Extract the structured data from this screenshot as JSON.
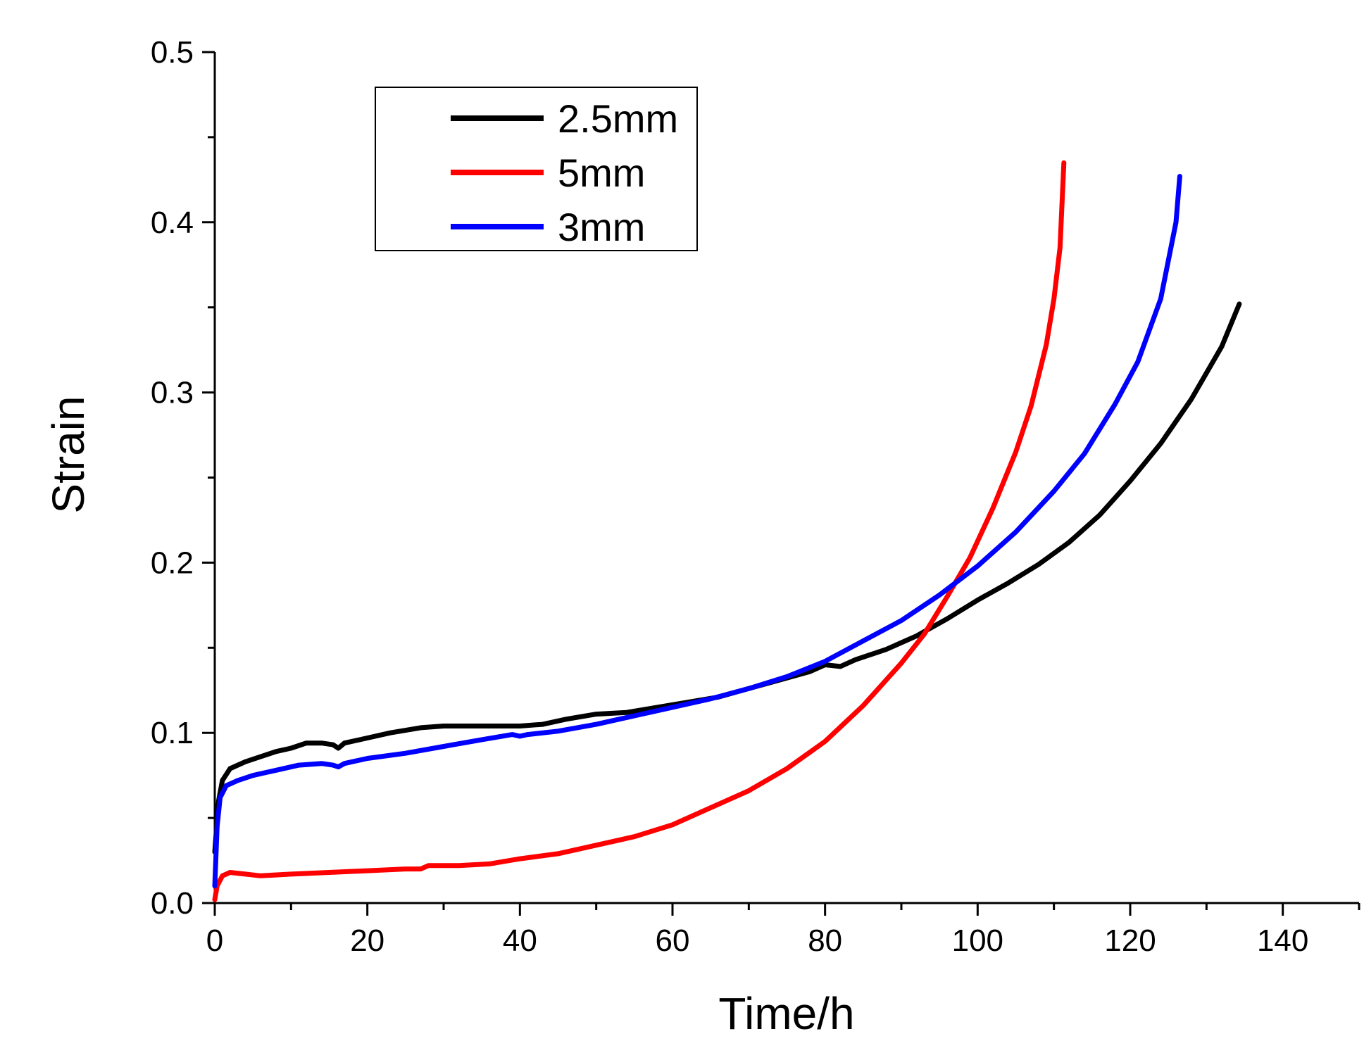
{
  "chart_data": {
    "type": "line",
    "title": "",
    "xlabel": "Time/h",
    "ylabel": "Strain",
    "xlim": [
      0,
      150
    ],
    "ylim": [
      0,
      0.5
    ],
    "x_ticks": [
      0,
      20,
      40,
      60,
      80,
      100,
      120,
      140
    ],
    "x_tick_labels": [
      "0",
      "20",
      "40",
      "60",
      "80",
      "100",
      "120",
      "140"
    ],
    "y_ticks": [
      0,
      0.1,
      0.2,
      0.3,
      0.4,
      0.5
    ],
    "y_tick_labels": [
      "0.0",
      "0.1",
      "0.2",
      "0.3",
      "0.4",
      "0.5"
    ],
    "grid": false,
    "legend_position": "top-left",
    "series": [
      {
        "name": "2.5mm",
        "color": "#000000",
        "points": [
          [
            0,
            0.03
          ],
          [
            0.5,
            0.06
          ],
          [
            1,
            0.072
          ],
          [
            2,
            0.079
          ],
          [
            4,
            0.083
          ],
          [
            6,
            0.086
          ],
          [
            8,
            0.089
          ],
          [
            10,
            0.091
          ],
          [
            12,
            0.094
          ],
          [
            14,
            0.094
          ],
          [
            15.5,
            0.093
          ],
          [
            16.2,
            0.091
          ],
          [
            17,
            0.094
          ],
          [
            20,
            0.097
          ],
          [
            23,
            0.1
          ],
          [
            27,
            0.103
          ],
          [
            30,
            0.104
          ],
          [
            35,
            0.104
          ],
          [
            40,
            0.104
          ],
          [
            43,
            0.105
          ],
          [
            46,
            0.108
          ],
          [
            50,
            0.111
          ],
          [
            54,
            0.112
          ],
          [
            58,
            0.115
          ],
          [
            62,
            0.118
          ],
          [
            66,
            0.121
          ],
          [
            70,
            0.126
          ],
          [
            74,
            0.131
          ],
          [
            78,
            0.136
          ],
          [
            80,
            0.14
          ],
          [
            82,
            0.139
          ],
          [
            84,
            0.143
          ],
          [
            88,
            0.149
          ],
          [
            92,
            0.157
          ],
          [
            96,
            0.167
          ],
          [
            100,
            0.178
          ],
          [
            104,
            0.188
          ],
          [
            108,
            0.199
          ],
          [
            112,
            0.212
          ],
          [
            116,
            0.228
          ],
          [
            120,
            0.248
          ],
          [
            124,
            0.27
          ],
          [
            128,
            0.296
          ],
          [
            132,
            0.327
          ],
          [
            134.3,
            0.352
          ]
        ]
      },
      {
        "name": "5mm",
        "color": "#ff0000",
        "points": [
          [
            0,
            0.002
          ],
          [
            0.3,
            0.01
          ],
          [
            1,
            0.016
          ],
          [
            2,
            0.018
          ],
          [
            4,
            0.017
          ],
          [
            6,
            0.016
          ],
          [
            10,
            0.017
          ],
          [
            15,
            0.018
          ],
          [
            20,
            0.019
          ],
          [
            25,
            0.02
          ],
          [
            27,
            0.02
          ],
          [
            28,
            0.022
          ],
          [
            32,
            0.022
          ],
          [
            36,
            0.023
          ],
          [
            40,
            0.026
          ],
          [
            45,
            0.029
          ],
          [
            50,
            0.034
          ],
          [
            55,
            0.039
          ],
          [
            60,
            0.046
          ],
          [
            65,
            0.056
          ],
          [
            70,
            0.066
          ],
          [
            75,
            0.079
          ],
          [
            80,
            0.095
          ],
          [
            85,
            0.116
          ],
          [
            90,
            0.141
          ],
          [
            93,
            0.158
          ],
          [
            96,
            0.18
          ],
          [
            99,
            0.203
          ],
          [
            102,
            0.232
          ],
          [
            105,
            0.265
          ],
          [
            107,
            0.292
          ],
          [
            109,
            0.328
          ],
          [
            110,
            0.355
          ],
          [
            110.8,
            0.385
          ],
          [
            111.3,
            0.435
          ]
        ]
      },
      {
        "name": "3mm",
        "color": "#0000ff",
        "points": [
          [
            0,
            0.01
          ],
          [
            0.3,
            0.045
          ],
          [
            0.7,
            0.062
          ],
          [
            1.5,
            0.069
          ],
          [
            3,
            0.072
          ],
          [
            5,
            0.075
          ],
          [
            8,
            0.078
          ],
          [
            11,
            0.081
          ],
          [
            14,
            0.082
          ],
          [
            15.5,
            0.081
          ],
          [
            16.2,
            0.08
          ],
          [
            17,
            0.082
          ],
          [
            20,
            0.085
          ],
          [
            25,
            0.088
          ],
          [
            30,
            0.092
          ],
          [
            35,
            0.096
          ],
          [
            39,
            0.099
          ],
          [
            40,
            0.098
          ],
          [
            41,
            0.099
          ],
          [
            45,
            0.101
          ],
          [
            50,
            0.105
          ],
          [
            55,
            0.11
          ],
          [
            60,
            0.115
          ],
          [
            65,
            0.12
          ],
          [
            70,
            0.126
          ],
          [
            75,
            0.133
          ],
          [
            80,
            0.142
          ],
          [
            85,
            0.154
          ],
          [
            90,
            0.166
          ],
          [
            95,
            0.181
          ],
          [
            100,
            0.198
          ],
          [
            105,
            0.218
          ],
          [
            110,
            0.242
          ],
          [
            114,
            0.264
          ],
          [
            118,
            0.293
          ],
          [
            121,
            0.318
          ],
          [
            124,
            0.355
          ],
          [
            126,
            0.4
          ],
          [
            126.5,
            0.427
          ]
        ]
      }
    ]
  }
}
